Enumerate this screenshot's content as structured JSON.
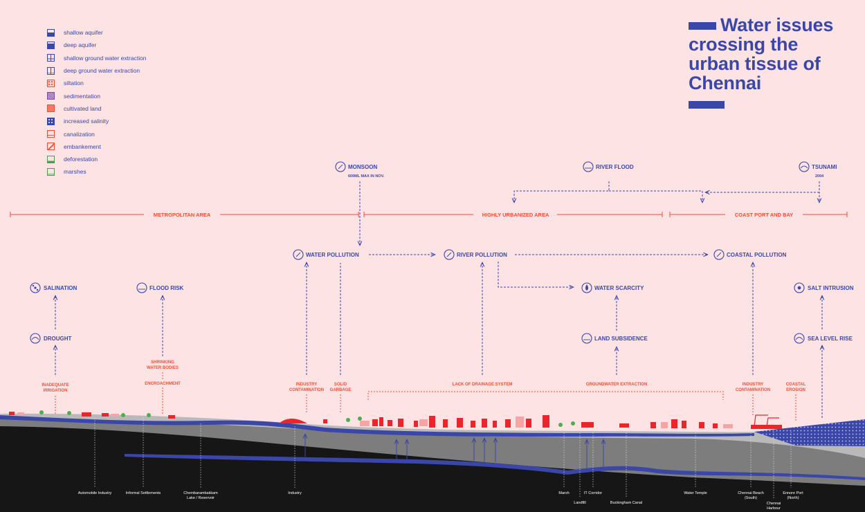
{
  "title": "Water issues crossing the urban tissue of Chennai",
  "legend": [
    {
      "label": "shallow aquifer",
      "icon": "shallow-aquifer-icon"
    },
    {
      "label": "deep aquifer",
      "icon": "deep-aquifer-icon"
    },
    {
      "label": "shallow ground water extraction",
      "icon": "shallow-extraction-icon"
    },
    {
      "label": "deep ground water extraction",
      "icon": "deep-extraction-icon"
    },
    {
      "label": "siltation",
      "icon": "siltation-icon"
    },
    {
      "label": "sedimentation",
      "icon": "sedimentation-icon"
    },
    {
      "label": "cultivated land",
      "icon": "cultivated-land-icon"
    },
    {
      "label": "increased salinity",
      "icon": "salinity-icon"
    },
    {
      "label": "canalization",
      "icon": "canalization-icon"
    },
    {
      "label": "embankement",
      "icon": "embankment-icon"
    },
    {
      "label": "deforestation",
      "icon": "deforestation-icon"
    },
    {
      "label": "marshes",
      "icon": "marshes-icon"
    }
  ],
  "zones": {
    "metropolitan": "METROPOLITAN AREA",
    "urbanized": "HIGHLY URBANIZED AREA",
    "coast": "COAST PORT AND BAY"
  },
  "nodes": {
    "monsoon": "MONSOON",
    "monsoon_sub": "600ML MAX IN NOV.",
    "river_flood": "RIVER FLOOD",
    "tsunami": "TSUNAMI",
    "tsunami_sub": "2004",
    "water_pollution": "WATER POLLUTION",
    "river_pollution": "RIVER POLLUTION",
    "coastal_pollution": "COASTAL POLLUTION",
    "salination": "SALINATION",
    "flood_risk": "FLOOD RISK",
    "water_scarcity": "WATER SCARCITY",
    "salt_intrusion": "SALT INTRUSION",
    "drought": "DROUGHT",
    "land_subsidence": "LAND SUBSIDENCE",
    "sea_level_rise": "SEA LEVEL RISE"
  },
  "causes": {
    "shrinking_1": "SHRINKING",
    "shrinking_2": "WATER BODIES",
    "encroachment": "ENCROACHMENT",
    "irrigation_1": "INADEQUATE",
    "irrigation_2": "IRRIGATION",
    "industry_1": "INDUSTRY",
    "industry_2": "CONTAMINATION",
    "garbage_1": "SOLID",
    "garbage_2": "GARBAGE",
    "drainage": "LACK OF DRAINAGE SYSTEM",
    "groundwater": "GROUNDWATER EXTRACTION",
    "coastal_industry_1": "INDUSTRY",
    "coastal_industry_2": "CONTAMINATION",
    "erosion_1": "COASTAL",
    "erosion_2": "EROSION"
  },
  "places": {
    "automobile": "Automobile Industry",
    "informal": "Informal Settlements",
    "chembar_1": "Chembarambakkam",
    "chembar_2": "Lake / Reservoir",
    "industry": "Industry",
    "marsh": "Marsh",
    "landfill": "Landfill",
    "it_corridor": "IT Corridor",
    "buckingham": "Buckingham Canal",
    "temple": "Water Temple",
    "beach_1": "Chennai Beach",
    "beach_2": "(South)",
    "harbour_1": "Chennai",
    "harbour_2": "Harbour",
    "ennore_1": "Ennore Port",
    "ennore_2": "(North)"
  },
  "colors": {
    "background": "#fde3e3",
    "blue": "#3a46a8",
    "red": "#f04e36",
    "ground_light": "#b9b9b9",
    "ground_mid": "#7d7d7d",
    "ground_dark": "#161616"
  }
}
